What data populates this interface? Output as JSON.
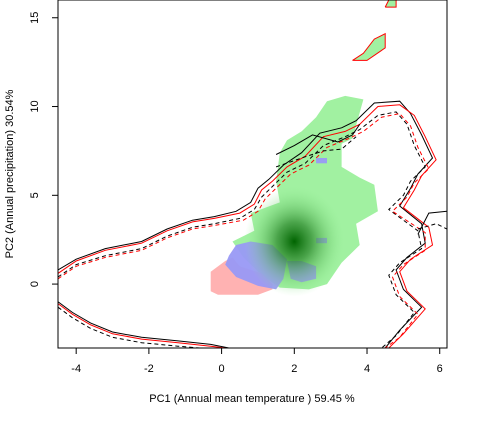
{
  "chart_data": {
    "type": "heatmap",
    "title": "",
    "xlabel": "PC1 (Annual mean temperature ) 59.45 %",
    "ylabel": "PC2 (Annual precipitation) 30.54%",
    "xlim": [
      -4.5,
      6.2
    ],
    "ylim": [
      -3.6,
      16
    ],
    "x_ticks": [
      -4,
      -2,
      0,
      2,
      4,
      6
    ],
    "y_ticks": [
      0,
      5,
      10,
      15
    ],
    "grid": false,
    "legend": "none",
    "series": [
      {
        "kind": "filled-region",
        "color": "#90ee90",
        "opacity": 0.85,
        "polygon": [
          [
            0.6,
            1.5
          ],
          [
            0.3,
            2.4
          ],
          [
            0.9,
            3.0
          ],
          [
            0.8,
            4.0
          ],
          [
            1.6,
            4.6
          ],
          [
            1.5,
            5.8
          ],
          [
            1.6,
            7.4
          ],
          [
            1.8,
            8.1
          ],
          [
            2.2,
            8.6
          ],
          [
            2.6,
            9.4
          ],
          [
            2.9,
            10.3
          ],
          [
            3.4,
            10.6
          ],
          [
            3.9,
            10.4
          ],
          [
            3.6,
            8.2
          ],
          [
            3.3,
            7.9
          ],
          [
            3.3,
            6.6
          ],
          [
            3.8,
            6.0
          ],
          [
            4.2,
            5.6
          ],
          [
            4.3,
            4.1
          ],
          [
            3.7,
            3.4
          ],
          [
            3.8,
            2.2
          ],
          [
            3.3,
            1.2
          ],
          [
            2.9,
            0.0
          ],
          [
            2.4,
            -0.3
          ],
          [
            1.6,
            -0.2
          ],
          [
            1.1,
            0.5
          ]
        ]
      },
      {
        "kind": "filled-region",
        "color": "#90ee90",
        "opacity": 0.85,
        "polygon": [
          [
            3.6,
            12.6
          ],
          [
            3.9,
            13.0
          ],
          [
            4.2,
            13.8
          ],
          [
            4.5,
            14.1
          ],
          [
            4.5,
            13.3
          ],
          [
            4.0,
            12.6
          ]
        ]
      },
      {
        "kind": "filled-region",
        "color": "#90ee90",
        "opacity": 0.85,
        "polygon": [
          [
            4.5,
            15.6
          ],
          [
            4.6,
            16.0
          ],
          [
            4.8,
            16.0
          ],
          [
            4.8,
            15.6
          ]
        ]
      },
      {
        "kind": "filled-region",
        "color": "#ffaaaa",
        "opacity": 0.9,
        "polygon": [
          [
            0.1,
            1.3
          ],
          [
            -0.3,
            0.7
          ],
          [
            -0.3,
            -0.4
          ],
          [
            -0.1,
            -0.6
          ],
          [
            0.3,
            -0.6
          ],
          [
            0.5,
            -0.6
          ],
          [
            1.0,
            -0.6
          ],
          [
            1.4,
            -0.3
          ],
          [
            1.4,
            0.0
          ],
          [
            1.1,
            0.6
          ],
          [
            0.5,
            1.0
          ],
          [
            0.3,
            1.5
          ]
        ]
      },
      {
        "kind": "filled-region",
        "color": "#9999f5",
        "opacity": 0.95,
        "polygon": [
          [
            0.2,
            1.6
          ],
          [
            0.4,
            2.2
          ],
          [
            0.8,
            2.4
          ],
          [
            1.4,
            2.2
          ],
          [
            1.8,
            1.4
          ],
          [
            1.7,
            0.3
          ],
          [
            1.5,
            -0.3
          ],
          [
            1.0,
            -0.1
          ],
          [
            0.4,
            0.4
          ],
          [
            0.1,
            1.1
          ]
        ]
      },
      {
        "kind": "filled-region",
        "color": "#9999f5",
        "opacity": 0.95,
        "polygon": [
          [
            1.8,
            1.3
          ],
          [
            2.2,
            1.3
          ],
          [
            2.6,
            1.0
          ],
          [
            2.6,
            0.3
          ],
          [
            2.2,
            0.1
          ],
          [
            1.9,
            0.3
          ]
        ]
      },
      {
        "kind": "filled-region",
        "color": "#9999f5",
        "opacity": 0.95,
        "polygon": [
          [
            2.6,
            2.6
          ],
          [
            2.9,
            2.6
          ],
          [
            2.9,
            2.3
          ],
          [
            2.6,
            2.3
          ]
        ]
      },
      {
        "kind": "filled-region",
        "color": "#9999f5",
        "opacity": 0.95,
        "polygon": [
          [
            2.6,
            7.1
          ],
          [
            2.9,
            7.1
          ],
          [
            2.9,
            6.8
          ],
          [
            2.6,
            6.8
          ]
        ]
      },
      {
        "kind": "density-peak",
        "center": [
          2.0,
          2.4
        ],
        "color": "#006400"
      },
      {
        "kind": "contour",
        "color": "#000000",
        "style": "solid",
        "points": [
          [
            -4.5,
            0.8
          ],
          [
            -4.0,
            1.4
          ],
          [
            -3.2,
            2.0
          ],
          [
            -2.2,
            2.4
          ],
          [
            -1.5,
            3.1
          ],
          [
            -0.8,
            3.6
          ],
          [
            -0.2,
            3.8
          ],
          [
            0.4,
            4.1
          ],
          [
            0.8,
            4.6
          ],
          [
            1.0,
            5.4
          ],
          [
            1.3,
            5.9
          ],
          [
            1.7,
            6.7
          ],
          [
            2.2,
            7.4
          ],
          [
            2.7,
            8.5
          ],
          [
            3.3,
            8.8
          ],
          [
            3.7,
            9.2
          ],
          [
            4.2,
            10.2
          ],
          [
            4.9,
            10.3
          ],
          [
            5.2,
            9.6
          ],
          [
            5.5,
            8.4
          ],
          [
            5.8,
            7.1
          ],
          [
            5.4,
            6.2
          ],
          [
            5.2,
            5.4
          ],
          [
            4.9,
            4.4
          ],
          [
            5.5,
            3.4
          ],
          [
            5.6,
            2.3
          ],
          [
            5.1,
            1.5
          ],
          [
            4.8,
            0.8
          ],
          [
            5.0,
            -0.3
          ],
          [
            5.5,
            -1.3
          ],
          [
            4.9,
            -2.6
          ],
          [
            4.5,
            -3.6
          ]
        ]
      },
      {
        "kind": "contour",
        "color": "#ff0000",
        "style": "solid",
        "points": [
          [
            -4.5,
            0.6
          ],
          [
            -4.0,
            1.3
          ],
          [
            -3.2,
            1.9
          ],
          [
            -2.2,
            2.3
          ],
          [
            -1.5,
            3.0
          ],
          [
            -0.8,
            3.5
          ],
          [
            -0.2,
            3.7
          ],
          [
            0.5,
            4.0
          ],
          [
            0.9,
            4.5
          ],
          [
            1.1,
            5.3
          ],
          [
            1.4,
            5.8
          ],
          [
            1.8,
            6.6
          ],
          [
            2.3,
            7.2
          ],
          [
            2.8,
            8.3
          ],
          [
            3.4,
            8.6
          ],
          [
            3.8,
            9.0
          ],
          [
            4.3,
            10.0
          ],
          [
            4.9,
            10.1
          ],
          [
            5.3,
            9.5
          ],
          [
            5.6,
            8.3
          ],
          [
            5.9,
            7.0
          ],
          [
            5.5,
            6.1
          ],
          [
            5.3,
            5.3
          ],
          [
            5.0,
            4.3
          ],
          [
            5.7,
            3.2
          ],
          [
            5.8,
            2.2
          ],
          [
            5.2,
            1.4
          ],
          [
            4.9,
            0.7
          ],
          [
            5.1,
            -0.4
          ],
          [
            5.6,
            -1.4
          ],
          [
            5.0,
            -2.8
          ],
          [
            4.6,
            -3.6
          ]
        ]
      },
      {
        "kind": "contour",
        "color": "#000000",
        "style": "dashed",
        "points": [
          [
            -4.5,
            0.4
          ],
          [
            -4.0,
            1.1
          ],
          [
            -3.2,
            1.6
          ],
          [
            -2.2,
            2.0
          ],
          [
            -1.5,
            2.7
          ],
          [
            -0.8,
            3.2
          ],
          [
            -0.2,
            3.4
          ],
          [
            0.5,
            3.7
          ],
          [
            0.9,
            4.2
          ],
          [
            1.1,
            4.9
          ],
          [
            1.4,
            5.5
          ],
          [
            1.8,
            6.3
          ],
          [
            2.3,
            6.8
          ],
          [
            2.8,
            7.8
          ],
          [
            3.4,
            8.3
          ],
          [
            3.8,
            8.7
          ],
          [
            4.3,
            9.5
          ],
          [
            4.8,
            9.7
          ],
          [
            5.1,
            9.0
          ],
          [
            5.3,
            7.8
          ],
          [
            5.6,
            6.6
          ],
          [
            5.2,
            5.8
          ],
          [
            5.0,
            5.0
          ],
          [
            4.6,
            4.2
          ],
          [
            5.4,
            3.0
          ],
          [
            5.5,
            2.0
          ],
          [
            4.9,
            1.2
          ],
          [
            4.6,
            0.5
          ],
          [
            4.8,
            -0.6
          ],
          [
            5.3,
            -1.6
          ],
          [
            4.8,
            -2.9
          ],
          [
            4.4,
            -3.6
          ]
        ]
      },
      {
        "kind": "contour",
        "color": "#ff0000",
        "style": "dashed",
        "points": [
          [
            -4.5,
            0.3
          ],
          [
            -4.0,
            1.0
          ],
          [
            -3.2,
            1.5
          ],
          [
            -2.2,
            1.9
          ],
          [
            -1.5,
            2.6
          ],
          [
            -0.8,
            3.1
          ],
          [
            -0.2,
            3.3
          ],
          [
            0.6,
            3.6
          ],
          [
            1.0,
            4.1
          ],
          [
            1.2,
            4.8
          ],
          [
            1.5,
            5.4
          ],
          [
            1.9,
            6.2
          ],
          [
            2.4,
            6.7
          ],
          [
            2.9,
            7.7
          ],
          [
            3.5,
            8.2
          ],
          [
            3.9,
            8.6
          ],
          [
            4.4,
            9.4
          ],
          [
            4.9,
            9.6
          ],
          [
            5.2,
            8.9
          ],
          [
            5.4,
            7.7
          ],
          [
            5.7,
            6.5
          ],
          [
            5.3,
            5.7
          ],
          [
            5.1,
            4.9
          ],
          [
            4.7,
            4.1
          ],
          [
            5.6,
            2.9
          ],
          [
            5.6,
            1.9
          ],
          [
            5.0,
            1.1
          ],
          [
            4.7,
            0.4
          ],
          [
            4.9,
            -0.7
          ],
          [
            5.4,
            -1.7
          ],
          [
            4.9,
            -3.0
          ],
          [
            4.5,
            -3.6
          ]
        ]
      },
      {
        "kind": "contour",
        "color": "#000000",
        "style": "solid",
        "points": [
          [
            -4.5,
            -1.0
          ],
          [
            -4.1,
            -1.6
          ],
          [
            -3.6,
            -2.2
          ],
          [
            -3.0,
            -2.7
          ],
          [
            -2.2,
            -3.0
          ],
          [
            -1.2,
            -3.2
          ],
          [
            -0.3,
            -3.4
          ],
          [
            0.2,
            -3.6
          ]
        ]
      },
      {
        "kind": "contour",
        "color": "#ff0000",
        "style": "solid",
        "points": [
          [
            -4.5,
            -1.1
          ],
          [
            -4.1,
            -1.7
          ],
          [
            -3.6,
            -2.3
          ],
          [
            -3.0,
            -2.8
          ],
          [
            -2.2,
            -3.1
          ],
          [
            -1.2,
            -3.3
          ],
          [
            -0.3,
            -3.5
          ],
          [
            0.1,
            -3.6
          ]
        ]
      },
      {
        "kind": "contour",
        "color": "#000000",
        "style": "dashed",
        "points": [
          [
            -4.5,
            -1.3
          ],
          [
            -4.1,
            -1.9
          ],
          [
            -3.6,
            -2.5
          ],
          [
            -3.0,
            -3.0
          ],
          [
            -2.2,
            -3.3
          ],
          [
            -1.2,
            -3.5
          ],
          [
            -0.6,
            -3.6
          ]
        ]
      },
      {
        "kind": "contour",
        "color": "#000000",
        "style": "solid",
        "points": [
          [
            1.5,
            7.3
          ],
          [
            2.0,
            7.8
          ],
          [
            2.5,
            8.4
          ],
          [
            3.2,
            8.0
          ],
          [
            3.6,
            8.4
          ],
          [
            3.8,
            9.0
          ]
        ]
      },
      {
        "kind": "contour",
        "color": "#000000",
        "style": "dashed",
        "points": [
          [
            1.5,
            6.6
          ],
          [
            2.2,
            7.1
          ],
          [
            2.8,
            7.5
          ],
          [
            3.3,
            7.6
          ],
          [
            3.7,
            8.3
          ]
        ]
      },
      {
        "kind": "contour",
        "color": "#ff0000",
        "style": "solid",
        "points": [
          [
            3.6,
            12.6
          ],
          [
            3.9,
            13.0
          ],
          [
            4.2,
            13.8
          ],
          [
            4.5,
            14.1
          ],
          [
            4.5,
            13.3
          ],
          [
            4.0,
            12.6
          ],
          [
            3.6,
            12.6
          ]
        ]
      },
      {
        "kind": "contour",
        "color": "#ff0000",
        "style": "solid",
        "points": [
          [
            4.5,
            15.6
          ],
          [
            4.6,
            16.0
          ],
          [
            4.8,
            16.0
          ],
          [
            4.8,
            15.6
          ],
          [
            4.5,
            15.6
          ]
        ]
      },
      {
        "kind": "contour",
        "color": "#000000",
        "style": "solid",
        "points": [
          [
            6.2,
            4.1
          ],
          [
            5.7,
            4.0
          ],
          [
            5.4,
            2.8
          ]
        ]
      },
      {
        "kind": "contour",
        "color": "#000000",
        "style": "dashed",
        "points": [
          [
            5.4,
            3.1
          ],
          [
            5.9,
            3.4
          ],
          [
            6.2,
            3.1
          ]
        ]
      }
    ]
  }
}
